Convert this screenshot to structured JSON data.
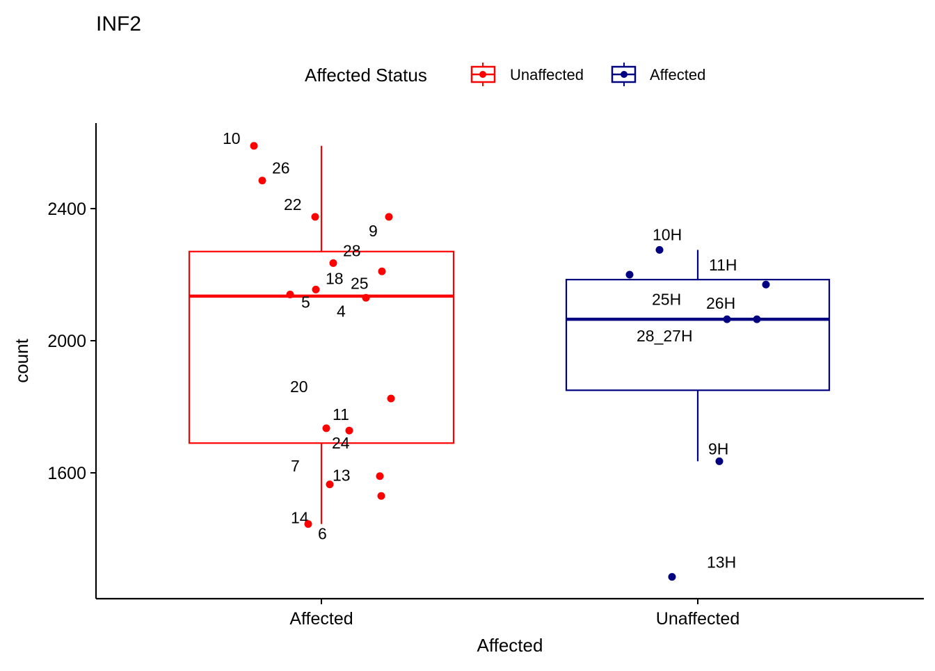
{
  "chart_data": {
    "type": "box",
    "title": "INF2",
    "xlabel": "Affected",
    "ylabel": "count",
    "ylim": [
      1220,
      2640
    ],
    "yticks": [
      1600,
      2000,
      2400
    ],
    "categories": [
      "Affected",
      "Unaffected"
    ],
    "legend": {
      "title": "Affected Status",
      "position": "top",
      "entries": [
        {
          "label": "Unaffected",
          "color": "#ff0000"
        },
        {
          "label": "Affected",
          "color": "#000080"
        }
      ]
    },
    "grid": false,
    "series": [
      {
        "category": "Affected",
        "legend_label": "Unaffected",
        "color": "#ff0000",
        "box": {
          "whisker_low": 1445,
          "q1": 1690,
          "median": 2135,
          "q3": 2270,
          "whisker_high": 2590
        },
        "points": [
          {
            "label": "10",
            "y": 2590
          },
          {
            "label": "26",
            "y": 2485
          },
          {
            "label": "22",
            "y": 2375
          },
          {
            "label": "9",
            "y": 2375
          },
          {
            "label": "28",
            "y": 2235
          },
          {
            "label": "25",
            "y": 2210
          },
          {
            "label": "18",
            "y": 2155
          },
          {
            "label": "5",
            "y": 2140
          },
          {
            "label": "4",
            "y": 2130
          },
          {
            "label": "20",
            "y": 1825
          },
          {
            "label": "11",
            "y": 1735
          },
          {
            "label": "24",
            "y": 1728
          },
          {
            "label": "7",
            "y": 1590
          },
          {
            "label": "13",
            "y": 1565
          },
          {
            "label": "14",
            "y": 1530
          },
          {
            "label": "6",
            "y": 1445
          }
        ]
      },
      {
        "category": "Unaffected",
        "legend_label": "Affected",
        "color": "#000080",
        "box": {
          "whisker_low": 1635,
          "q1": 1850,
          "median": 2065,
          "q3": 2185,
          "whisker_high": 2275
        },
        "points": [
          {
            "label": "10H",
            "y": 2275
          },
          {
            "label": "11H",
            "y": 2200
          },
          {
            "label": "25H",
            "y": 2170
          },
          {
            "label": "26H",
            "y": 2065
          },
          {
            "label": "28_27H",
            "y": 2065
          },
          {
            "label": "9H",
            "y": 1635
          },
          {
            "label": "13H",
            "y": 1285
          }
        ]
      }
    ]
  }
}
